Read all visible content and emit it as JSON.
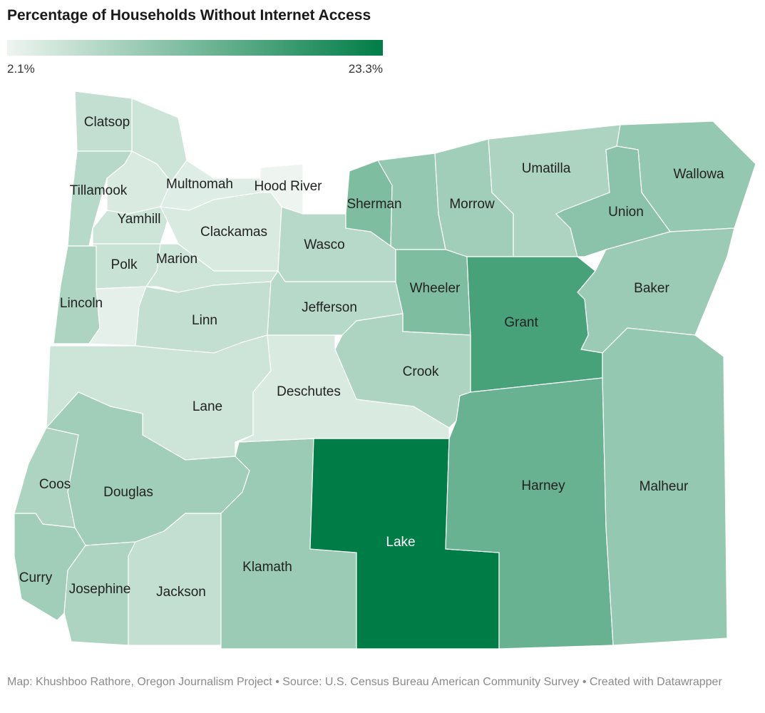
{
  "chart_data": {
    "type": "choropleth",
    "title": "Percentage of Households Without Internet Access",
    "colors": [
      "#eef5f0",
      "#007d47"
    ],
    "scale_ticks": [
      {
        "value": 2.1,
        "label": "2.1%"
      },
      {
        "value": 23.3,
        "label": "23.3%"
      }
    ],
    "categories": [
      "Clatsop",
      null,
      "Tillamook",
      null,
      "Multnomah",
      "Hood River",
      "Yamhill",
      "Clackamas",
      "Polk",
      "Marion",
      "Lincoln",
      null,
      "Linn",
      "Lane",
      "Douglas",
      "Coos",
      "Curry",
      "Josephine",
      "Jackson",
      "Klamath",
      "Lake",
      "Deschutes",
      "Jefferson",
      "Wasco",
      "Sherman",
      null,
      "Morrow",
      "Umatilla",
      "Wallowa",
      "Union",
      "Baker",
      "Wheeler",
      "Grant",
      "Crook",
      "Harney",
      "Malheur"
    ],
    "values": [
      6,
      5,
      7,
      4,
      3.5,
      2.1,
      5,
      4,
      5.5,
      5,
      8,
      3,
      6,
      5,
      9,
      8,
      9,
      8,
      6,
      9.5,
      23.3,
      4,
      7,
      7,
      12,
      10,
      9,
      8,
      10,
      11,
      9.5,
      12,
      17,
      8,
      14,
      10
    ],
    "source": "Map: Khushboo Rathore, Oregon Journalism Project • Source: U.S. Census Bureau American Community Survey • Created with Datawrapper"
  }
}
